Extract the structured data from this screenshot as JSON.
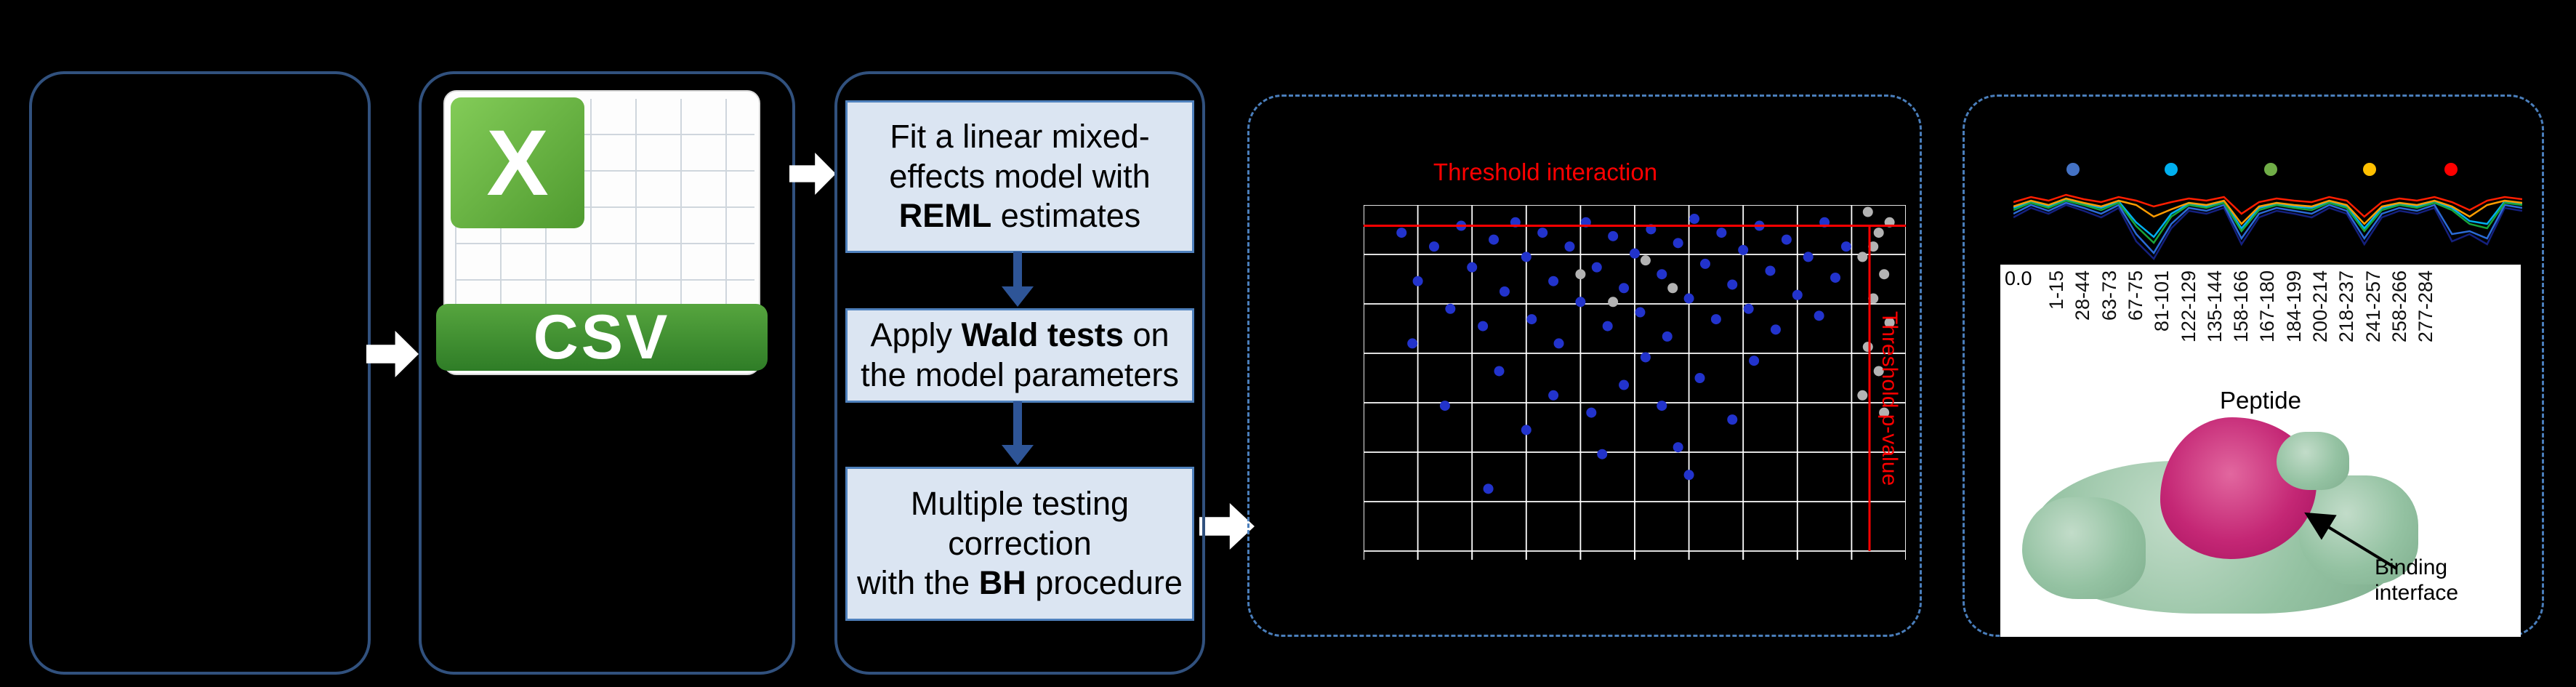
{
  "figure": {
    "csv": {
      "logo_letter": "X",
      "file_type": "CSV"
    },
    "flow": {
      "box1": {
        "t1": "Fit a linear mixed-\neffects model with\n",
        "t2": "REML",
        "t3": " estimates"
      },
      "box2": {
        "t1": "Apply ",
        "t2": "Wald tests",
        "t3": " on\nthe model parameters"
      },
      "box3": {
        "t1": "Multiple testing\ncorrection\nwith the ",
        "t2": "BH",
        "t3": " procedure"
      }
    }
  },
  "volcano": {
    "title": "Threshold interaction",
    "side_label": "Threshold p-value",
    "grid": {
      "cols": 10,
      "rows": 7
    },
    "threshold_y": 0.06,
    "threshold_x": 0.933,
    "colors": {
      "significant": "#2233cc",
      "nonsignificant": "#b3b3b3",
      "threshold": "#ff0000",
      "grid": "#ffffff"
    },
    "points_significant": [
      [
        0.07,
        0.08
      ],
      [
        0.1,
        0.22
      ],
      [
        0.13,
        0.12
      ],
      [
        0.16,
        0.3
      ],
      [
        0.18,
        0.06
      ],
      [
        0.2,
        0.18
      ],
      [
        0.22,
        0.35
      ],
      [
        0.24,
        0.1
      ],
      [
        0.26,
        0.25
      ],
      [
        0.28,
        0.05
      ],
      [
        0.3,
        0.15
      ],
      [
        0.31,
        0.33
      ],
      [
        0.33,
        0.08
      ],
      [
        0.35,
        0.22
      ],
      [
        0.36,
        0.4
      ],
      [
        0.38,
        0.12
      ],
      [
        0.4,
        0.28
      ],
      [
        0.41,
        0.05
      ],
      [
        0.43,
        0.18
      ],
      [
        0.45,
        0.35
      ],
      [
        0.46,
        0.09
      ],
      [
        0.48,
        0.24
      ],
      [
        0.5,
        0.14
      ],
      [
        0.51,
        0.31
      ],
      [
        0.53,
        0.07
      ],
      [
        0.55,
        0.2
      ],
      [
        0.56,
        0.38
      ],
      [
        0.58,
        0.11
      ],
      [
        0.6,
        0.27
      ],
      [
        0.61,
        0.04
      ],
      [
        0.63,
        0.17
      ],
      [
        0.65,
        0.33
      ],
      [
        0.66,
        0.08
      ],
      [
        0.68,
        0.23
      ],
      [
        0.7,
        0.13
      ],
      [
        0.71,
        0.3
      ],
      [
        0.73,
        0.06
      ],
      [
        0.75,
        0.19
      ],
      [
        0.76,
        0.36
      ],
      [
        0.78,
        0.1
      ],
      [
        0.8,
        0.26
      ],
      [
        0.82,
        0.15
      ],
      [
        0.84,
        0.32
      ],
      [
        0.85,
        0.05
      ],
      [
        0.87,
        0.21
      ],
      [
        0.89,
        0.12
      ],
      [
        0.35,
        0.55
      ],
      [
        0.42,
        0.6
      ],
      [
        0.48,
        0.52
      ],
      [
        0.55,
        0.58
      ],
      [
        0.3,
        0.65
      ],
      [
        0.62,
        0.5
      ],
      [
        0.25,
        0.48
      ],
      [
        0.68,
        0.62
      ],
      [
        0.15,
        0.58
      ],
      [
        0.72,
        0.45
      ],
      [
        0.09,
        0.4
      ],
      [
        0.58,
        0.7
      ],
      [
        0.44,
        0.72
      ],
      [
        0.52,
        0.44
      ],
      [
        0.23,
        0.82
      ],
      [
        0.6,
        0.78
      ]
    ],
    "points_nonsignificant": [
      [
        0.93,
        0.02
      ],
      [
        0.95,
        0.08
      ],
      [
        0.92,
        0.15
      ],
      [
        0.96,
        0.2
      ],
      [
        0.94,
        0.27
      ],
      [
        0.97,
        0.34
      ],
      [
        0.93,
        0.41
      ],
      [
        0.95,
        0.48
      ],
      [
        0.92,
        0.55
      ],
      [
        0.96,
        0.6
      ],
      [
        0.94,
        0.12
      ],
      [
        0.97,
        0.05
      ],
      [
        0.4,
        0.2
      ],
      [
        0.46,
        0.28
      ],
      [
        0.52,
        0.16
      ],
      [
        0.57,
        0.24
      ]
    ]
  },
  "profile": {
    "y_tick": "0.0",
    "x_axis_label": "Peptide",
    "x_labels": [
      "1-15",
      "28-44",
      "63-73",
      "67-75",
      "81-101",
      "122-129",
      "135-144",
      "158-166",
      "167-180",
      "184-199",
      "200-214",
      "218-237",
      "241-257",
      "258-266",
      "277-284"
    ],
    "legend": [
      {
        "color": "#4472c4",
        "x": 0.117
      },
      {
        "color": "#00b0f0",
        "x": 0.31
      },
      {
        "color": "#70ad47",
        "x": 0.505
      },
      {
        "color": "#ffc000",
        "x": 0.7
      },
      {
        "color": "#ff0000",
        "x": 0.86
      }
    ],
    "series": [
      {
        "name": "navy",
        "color": "#14207e",
        "values": [
          0.43,
          0.3,
          0.38,
          0.26,
          0.34,
          0.43,
          0.3,
          0.76,
          1.0,
          0.58,
          0.34,
          0.38,
          0.3,
          0.8,
          0.43,
          0.34,
          0.38,
          0.43,
          0.3,
          0.38,
          0.8,
          0.43,
          0.34,
          0.38,
          0.3,
          0.76,
          0.66,
          0.8,
          0.3,
          0.34
        ]
      },
      {
        "name": "blue",
        "color": "#2b6bd6",
        "values": [
          0.38,
          0.26,
          0.34,
          0.23,
          0.3,
          0.38,
          0.26,
          0.66,
          0.92,
          0.52,
          0.3,
          0.34,
          0.26,
          0.72,
          0.38,
          0.3,
          0.34,
          0.38,
          0.26,
          0.34,
          0.72,
          0.38,
          0.3,
          0.34,
          0.26,
          0.66,
          0.62,
          0.72,
          0.26,
          0.3
        ]
      },
      {
        "name": "cyan",
        "color": "#00b0f0",
        "values": [
          0.3,
          0.21,
          0.28,
          0.18,
          0.24,
          0.3,
          0.21,
          0.5,
          0.7,
          0.38,
          0.24,
          0.28,
          0.21,
          0.58,
          0.3,
          0.24,
          0.28,
          0.3,
          0.21,
          0.28,
          0.58,
          0.3,
          0.24,
          0.28,
          0.21,
          0.3,
          0.48,
          0.52,
          0.21,
          0.24
        ]
      },
      {
        "name": "green",
        "color": "#18a53a",
        "values": [
          0.33,
          0.23,
          0.3,
          0.2,
          0.26,
          0.33,
          0.23,
          0.55,
          0.78,
          0.42,
          0.26,
          0.3,
          0.23,
          0.62,
          0.33,
          0.26,
          0.3,
          0.33,
          0.23,
          0.3,
          0.62,
          0.33,
          0.26,
          0.3,
          0.23,
          0.33,
          0.52,
          0.58,
          0.23,
          0.26
        ]
      },
      {
        "name": "orange",
        "color": "#ff9c00",
        "values": [
          0.28,
          0.2,
          0.26,
          0.17,
          0.23,
          0.28,
          0.2,
          0.26,
          0.42,
          0.32,
          0.23,
          0.26,
          0.2,
          0.52,
          0.28,
          0.23,
          0.26,
          0.28,
          0.2,
          0.26,
          0.52,
          0.28,
          0.23,
          0.26,
          0.2,
          0.28,
          0.42,
          0.26,
          0.2,
          0.23
        ]
      },
      {
        "name": "red",
        "color": "#ff1e00",
        "values": [
          0.22,
          0.15,
          0.2,
          0.12,
          0.18,
          0.22,
          0.15,
          0.2,
          0.28,
          0.22,
          0.17,
          0.2,
          0.15,
          0.38,
          0.22,
          0.17,
          0.2,
          0.22,
          0.15,
          0.2,
          0.42,
          0.22,
          0.17,
          0.2,
          0.15,
          0.22,
          0.33,
          0.2,
          0.15,
          0.18
        ]
      }
    ]
  },
  "structure": {
    "annotation": "Binding\ninterface"
  }
}
